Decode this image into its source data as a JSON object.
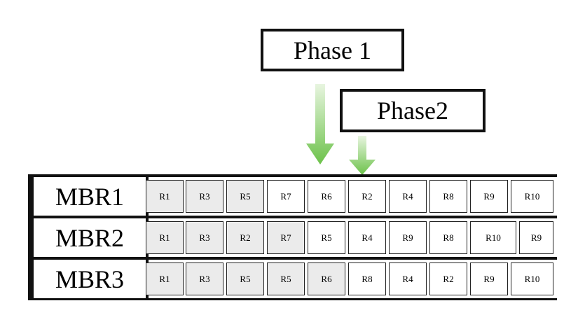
{
  "phases": [
    {
      "label": "Phase 1"
    },
    {
      "label": "Phase2"
    }
  ],
  "colors": {
    "arrow_top": "#e8f5e0",
    "arrow_bottom": "#6cc24a",
    "shaded_cell": "#ebebeb",
    "border": "#111111"
  },
  "rows": [
    {
      "label": "MBR1",
      "cells": [
        {
          "text": "R1",
          "shaded": true
        },
        {
          "text": "R3",
          "shaded": true
        },
        {
          "text": "R5",
          "shaded": true
        },
        {
          "text": "R7",
          "shaded": false
        },
        {
          "text": "R6",
          "shaded": false
        },
        {
          "text": "R2",
          "shaded": false
        },
        {
          "text": "R4",
          "shaded": false
        },
        {
          "text": "R8",
          "shaded": false
        },
        {
          "text": "R9",
          "shaded": false
        },
        {
          "text": "R10",
          "shaded": false
        }
      ]
    },
    {
      "label": "MBR2",
      "cells": [
        {
          "text": "R1",
          "shaded": true
        },
        {
          "text": "R3",
          "shaded": true
        },
        {
          "text": "R2",
          "shaded": true
        },
        {
          "text": "R7",
          "shaded": true
        },
        {
          "text": "R5",
          "shaded": false
        },
        {
          "text": "R4",
          "shaded": false
        },
        {
          "text": "R9",
          "shaded": false
        },
        {
          "text": "R8",
          "shaded": false
        },
        {
          "text": "R10",
          "shaded": false
        },
        {
          "text": "R9",
          "shaded": false
        }
      ]
    },
    {
      "label": "MBR3",
      "cells": [
        {
          "text": "R1",
          "shaded": true
        },
        {
          "text": "R3",
          "shaded": true
        },
        {
          "text": "R5",
          "shaded": true
        },
        {
          "text": "R5",
          "shaded": true
        },
        {
          "text": "R6",
          "shaded": true
        },
        {
          "text": "R8",
          "shaded": false
        },
        {
          "text": "R4",
          "shaded": false
        },
        {
          "text": "R2",
          "shaded": false
        },
        {
          "text": "R9",
          "shaded": false
        },
        {
          "text": "R10",
          "shaded": false
        }
      ]
    }
  ]
}
